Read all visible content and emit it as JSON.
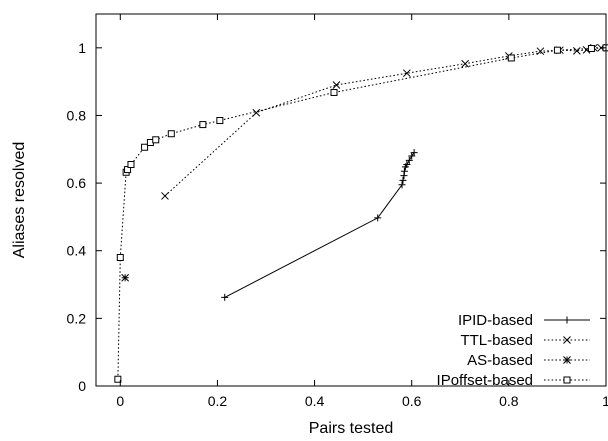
{
  "chart_data": {
    "type": "line",
    "title": "",
    "xlabel": "Pairs tested",
    "ylabel": "Aliases resolved",
    "xlim": [
      -0.05,
      1.0
    ],
    "ylim": [
      0,
      1.1
    ],
    "xticks": [
      0,
      0.2,
      0.4,
      0.6,
      0.8,
      1
    ],
    "yticks": [
      0,
      0.2,
      0.4,
      0.6,
      0.8,
      1
    ],
    "xtick_labels": [
      "0",
      "0.2",
      "0.4",
      "0.6",
      "0.8",
      "1"
    ],
    "ytick_labels": [
      "0",
      "0.2",
      "0.4",
      "0.6",
      "0.8",
      "1"
    ],
    "grid": false,
    "legend_position": "bottom-right",
    "series": [
      {
        "name": "IPID-based",
        "line": "solid",
        "marker": "plus",
        "x": [
          0.215,
          0.53,
          0.58,
          0.582,
          0.584,
          0.585,
          0.587,
          0.59,
          0.595,
          0.6,
          0.605
        ],
        "y": [
          0.262,
          0.497,
          0.595,
          0.608,
          0.622,
          0.635,
          0.648,
          0.655,
          0.667,
          0.68,
          0.69
        ]
      },
      {
        "name": "TTL-based",
        "line": "dotted",
        "marker": "x",
        "x": [
          0.092,
          0.28,
          0.445,
          0.59,
          0.71,
          0.8,
          0.865,
          0.905,
          0.94,
          0.96,
          0.975,
          0.99
        ],
        "y": [
          0.562,
          0.808,
          0.89,
          0.925,
          0.953,
          0.976,
          0.99,
          0.993,
          0.991,
          0.994,
          1.0,
          1.0
        ]
      },
      {
        "name": "AS-based",
        "line": "dotted",
        "marker": "asterisk",
        "x": [
          0.01
        ],
        "y": [
          0.32
        ]
      },
      {
        "name": "IPoffset-based",
        "line": "dotted",
        "marker": "square",
        "x": [
          -0.005,
          0.0,
          0.012,
          0.015,
          0.022,
          0.05,
          0.062,
          0.073,
          0.105,
          0.17,
          0.205,
          0.44,
          0.805,
          0.9,
          0.97,
          1.0
        ],
        "y": [
          0.02,
          0.38,
          0.632,
          0.64,
          0.655,
          0.706,
          0.72,
          0.728,
          0.746,
          0.773,
          0.785,
          0.868,
          0.97,
          0.993,
          0.998,
          1.0
        ]
      }
    ]
  }
}
